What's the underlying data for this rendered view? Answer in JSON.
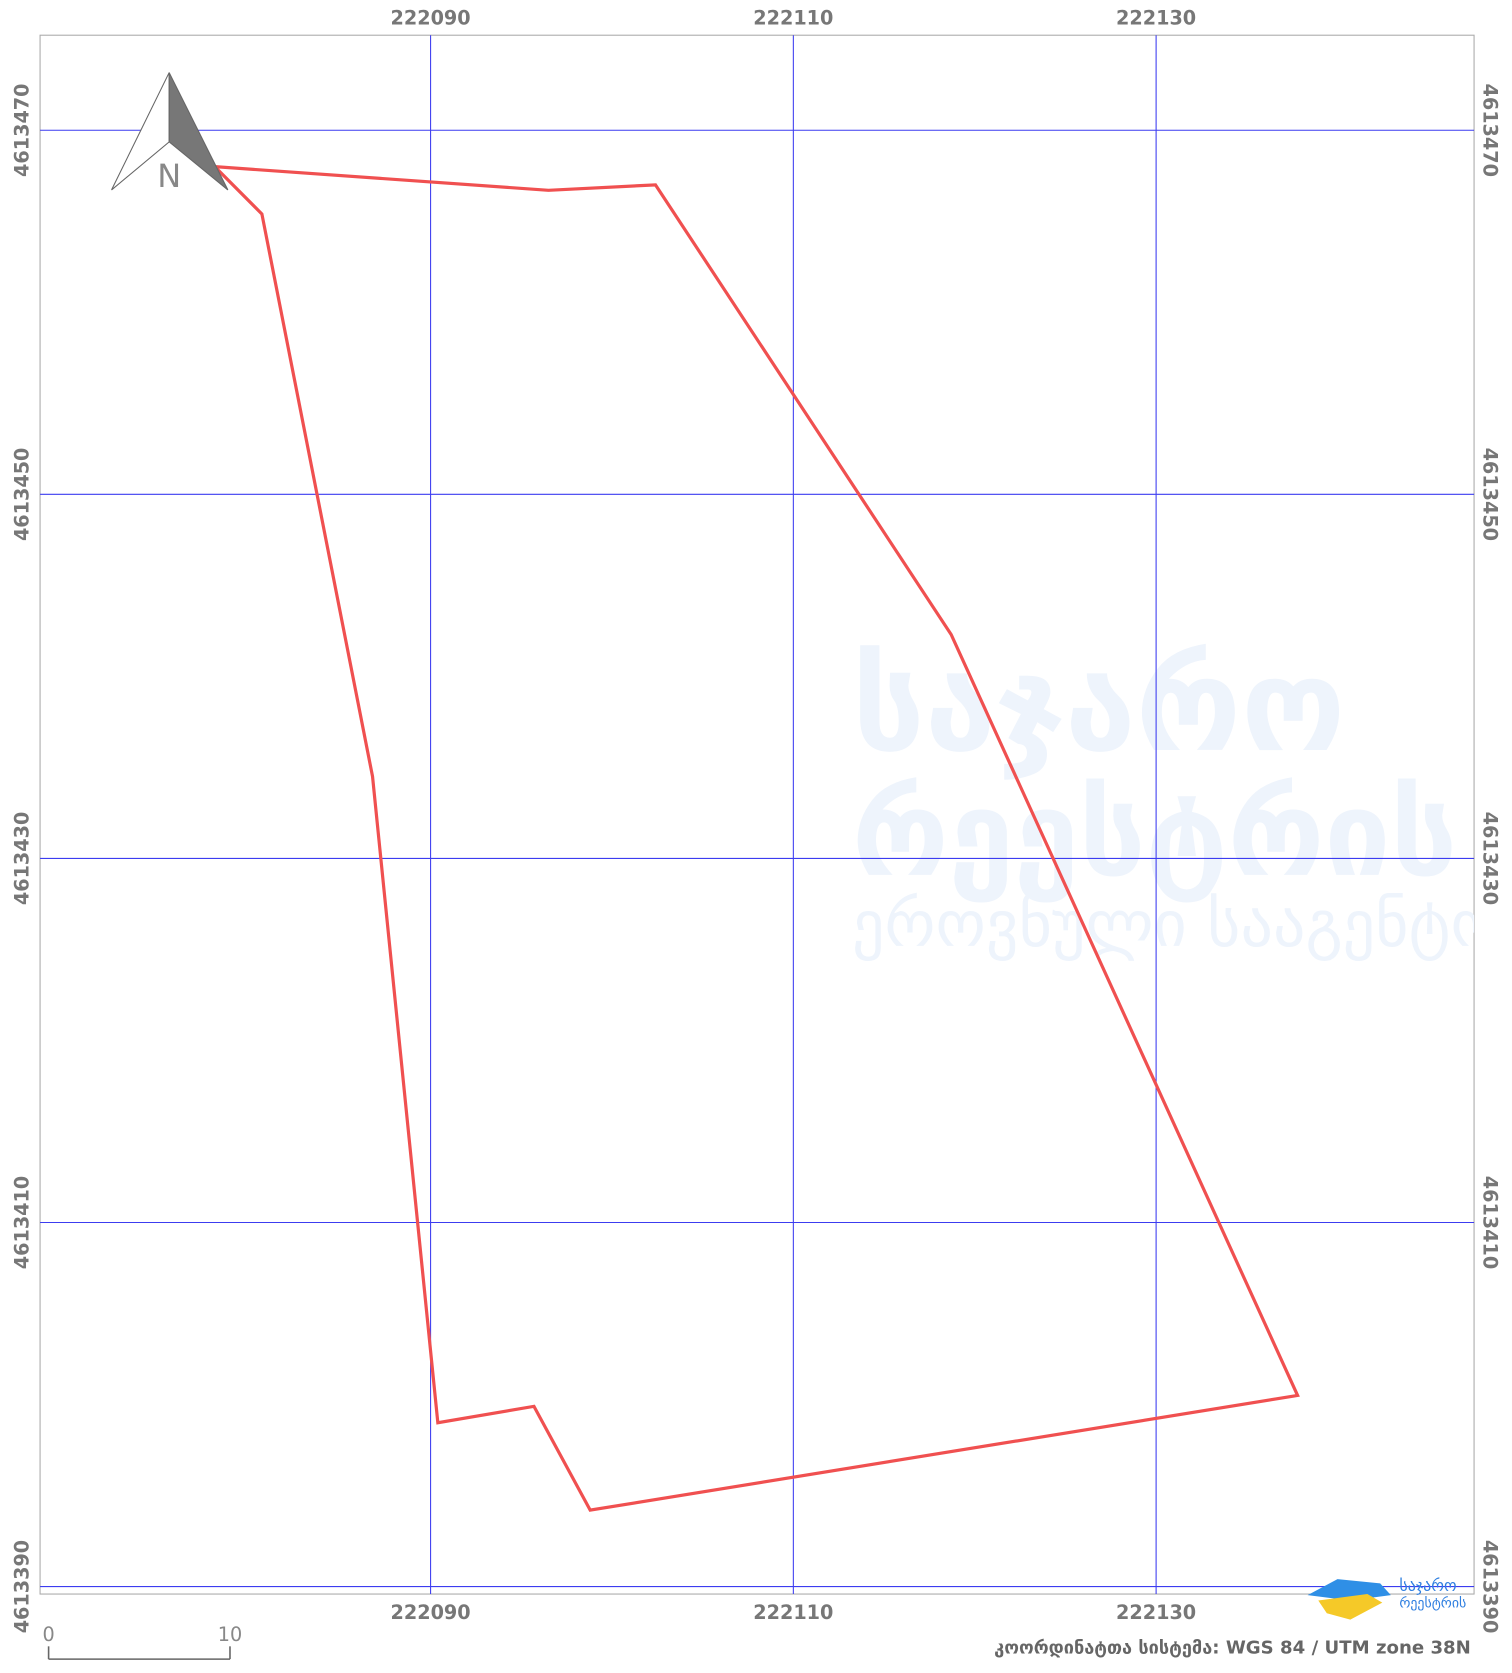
{
  "map": {
    "x_axis": {
      "lim": [
        222068.47,
        222147.53
      ],
      "ticks": [
        222090,
        222110,
        222130
      ]
    },
    "y_axis": {
      "lim": [
        4613389.59,
        4613475.22
      ],
      "ticks": [
        4613470,
        4613450,
        4613430,
        4613410,
        4613390
      ]
    },
    "parcel": {
      "color": "#f05050",
      "vertices": [
        [
          222078.1,
          4613468.0
        ],
        [
          222096.5,
          4613466.7
        ],
        [
          222102.4,
          4613467.0
        ],
        [
          222118.7,
          4613442.3
        ],
        [
          222137.8,
          4613400.5
        ],
        [
          222098.8,
          4613394.2
        ],
        [
          222095.7,
          4613399.9
        ],
        [
          222090.4,
          4613399.0
        ],
        [
          222086.8,
          4613434.5
        ],
        [
          222080.7,
          4613465.4
        ]
      ]
    },
    "north_arrow": {
      "label": "N"
    },
    "scale_bar": {
      "ticks": [
        0,
        10
      ]
    },
    "crs_label": "კოორდინატთა სისტემა: WGS 84 / UTM zone 38N",
    "logo": {
      "line1": "საჯარო",
      "line2": "რეესტრის"
    },
    "watermark": [
      "საჯარო",
      "რეესტრის",
      "ეროვნული სააგენტო"
    ]
  }
}
